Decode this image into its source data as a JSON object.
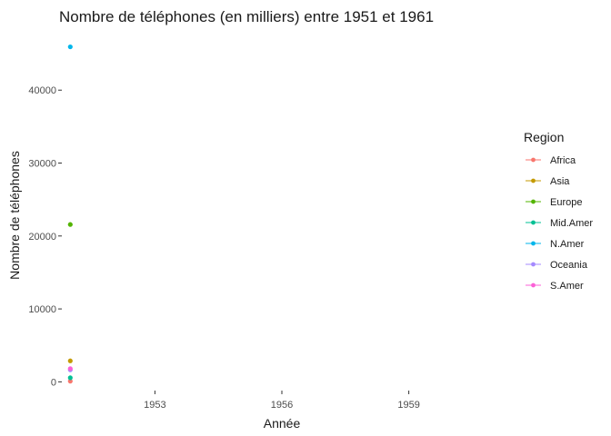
{
  "chart_data": {
    "type": "scatter",
    "title": "Nombre de téléphones (en milliers) entre 1951 et 1961",
    "xlabel": "Année",
    "ylabel": "Nombre de téléphones",
    "xlim": [
      1950.8,
      1961.2
    ],
    "ylim": [
      -1200,
      48000
    ],
    "xticks": [
      1953,
      1956,
      1959
    ],
    "yticks": [
      0,
      10000,
      20000,
      30000,
      40000
    ],
    "grid": false,
    "legend": {
      "title": "Region",
      "placement": "right"
    },
    "series": [
      {
        "name": "Africa",
        "color": "#F8766D",
        "x": [
          1951
        ],
        "y": [
          89
        ]
      },
      {
        "name": "Asia",
        "color": "#C49A00",
        "x": [
          1951
        ],
        "y": [
          2876
        ]
      },
      {
        "name": "Europe",
        "color": "#53B400",
        "x": [
          1951
        ],
        "y": [
          21574
        ]
      },
      {
        "name": "Mid.Amer",
        "color": "#00C094",
        "x": [
          1951
        ],
        "y": [
          555
        ]
      },
      {
        "name": "N.Amer",
        "color": "#00B6EB",
        "x": [
          1951
        ],
        "y": [
          45939
        ]
      },
      {
        "name": "Oceania",
        "color": "#A58AFF",
        "x": [
          1951
        ],
        "y": [
          1646
        ]
      },
      {
        "name": "S.Amer",
        "color": "#FB61D7",
        "x": [
          1951
        ],
        "y": [
          1815
        ]
      }
    ]
  }
}
